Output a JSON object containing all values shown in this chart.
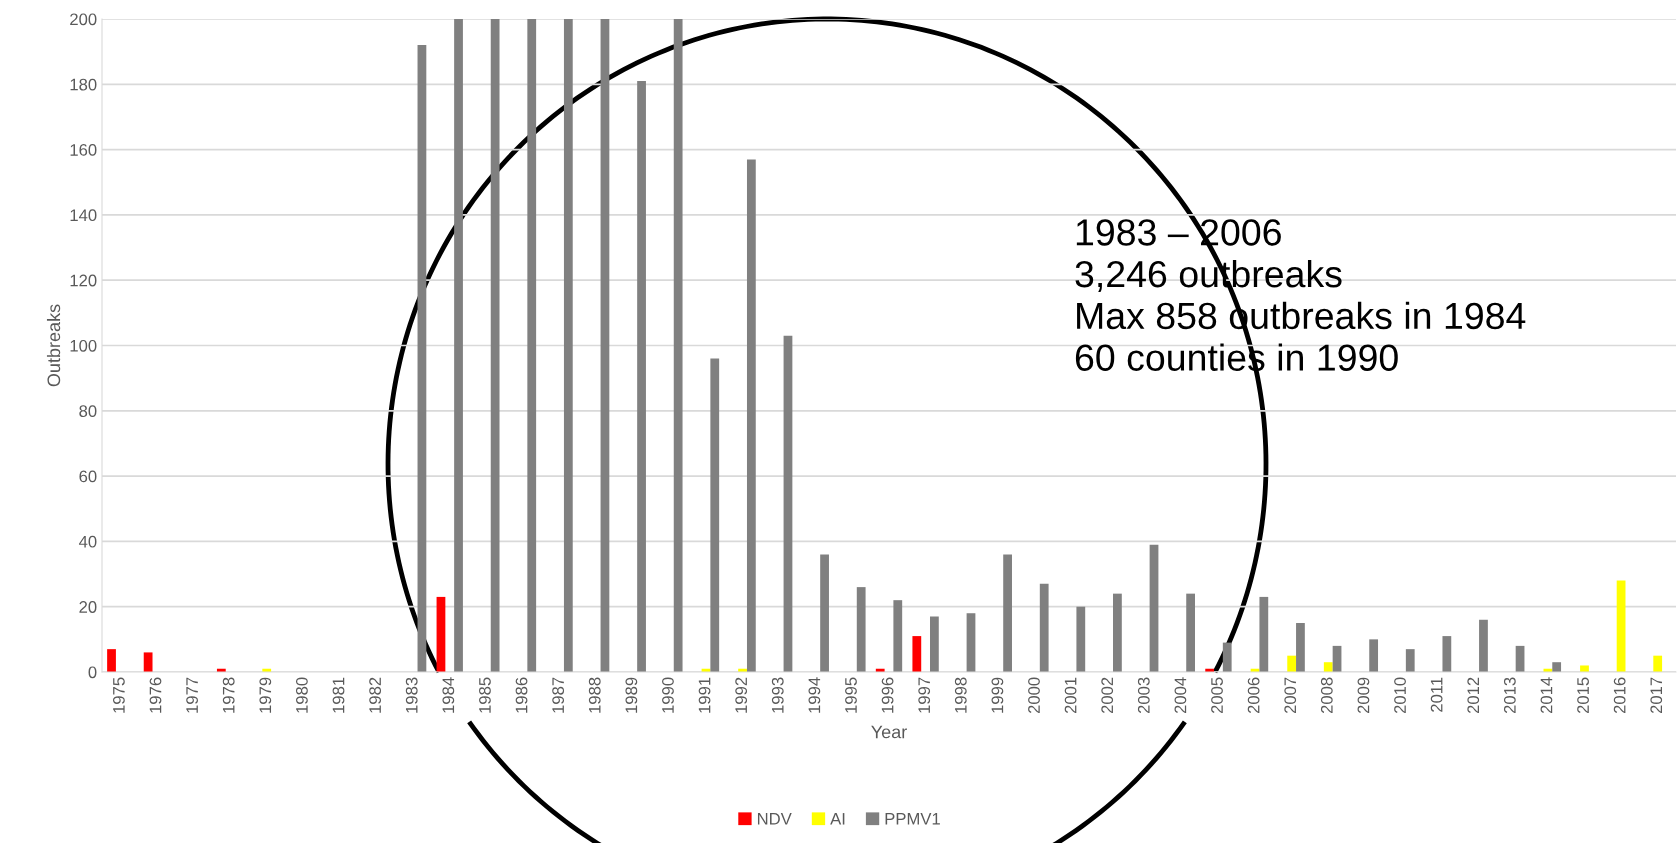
{
  "chart_data": {
    "type": "bar",
    "xlabel": "Year",
    "ylabel": "Outbreaks",
    "categories": [
      "1975",
      "1976",
      "1977",
      "1978",
      "1979",
      "1980",
      "1981",
      "1982",
      "1983",
      "1984",
      "1985",
      "1986",
      "1987",
      "1988",
      "1989",
      "1990",
      "1991",
      "1992",
      "1993",
      "1994",
      "1995",
      "1996",
      "1997",
      "1998",
      "1999",
      "2000",
      "2001",
      "2002",
      "2003",
      "2004",
      "2005",
      "2006",
      "2007",
      "2008",
      "2009",
      "2010",
      "2011",
      "2012",
      "2013",
      "2014",
      "2015",
      "2016",
      "2017"
    ],
    "series": [
      {
        "name": "NDV",
        "color": "#ff0000",
        "values": [
          7,
          6,
          0,
          1,
          0,
          0,
          0,
          0,
          0,
          23,
          0,
          0,
          0,
          0,
          0,
          0,
          0,
          0,
          0,
          0,
          0,
          1,
          11,
          0,
          0,
          0,
          0,
          0,
          0,
          0,
          1,
          0,
          0,
          0,
          0,
          0,
          0,
          0,
          0,
          0,
          0,
          0,
          0
        ]
      },
      {
        "name": "AI",
        "color": "#ffff00",
        "values": [
          0,
          0,
          0,
          0,
          1,
          0,
          0,
          0,
          0,
          0,
          0,
          0,
          0,
          0,
          0,
          0,
          1,
          1,
          0,
          0,
          0,
          0,
          0,
          0,
          0,
          0,
          0,
          0,
          0,
          0,
          0,
          1,
          5,
          3,
          0,
          0,
          0,
          0,
          0,
          1,
          2,
          28,
          5
        ]
      },
      {
        "name": "PPMV1",
        "color": "#808080",
        "values": [
          0,
          0,
          0,
          0,
          0,
          0,
          0,
          0,
          192,
          200,
          200,
          200,
          200,
          200,
          181,
          200,
          96,
          157,
          103,
          36,
          26,
          22,
          17,
          18,
          36,
          27,
          20,
          24,
          39,
          24,
          9,
          23,
          15,
          8,
          10,
          7,
          11,
          16,
          8,
          3,
          0,
          0,
          0
        ]
      }
    ],
    "ylim": [
      0,
      200
    ],
    "yticks": [
      0,
      20,
      40,
      60,
      80,
      100,
      120,
      140,
      160,
      180,
      200
    ],
    "grid": "y",
    "legend": "bottom",
    "annotations": [
      "1983 – 2006",
      "3,246 outbreaks",
      "Max 858 outbreaks in 1984",
      "60 counties in 1990"
    ]
  }
}
